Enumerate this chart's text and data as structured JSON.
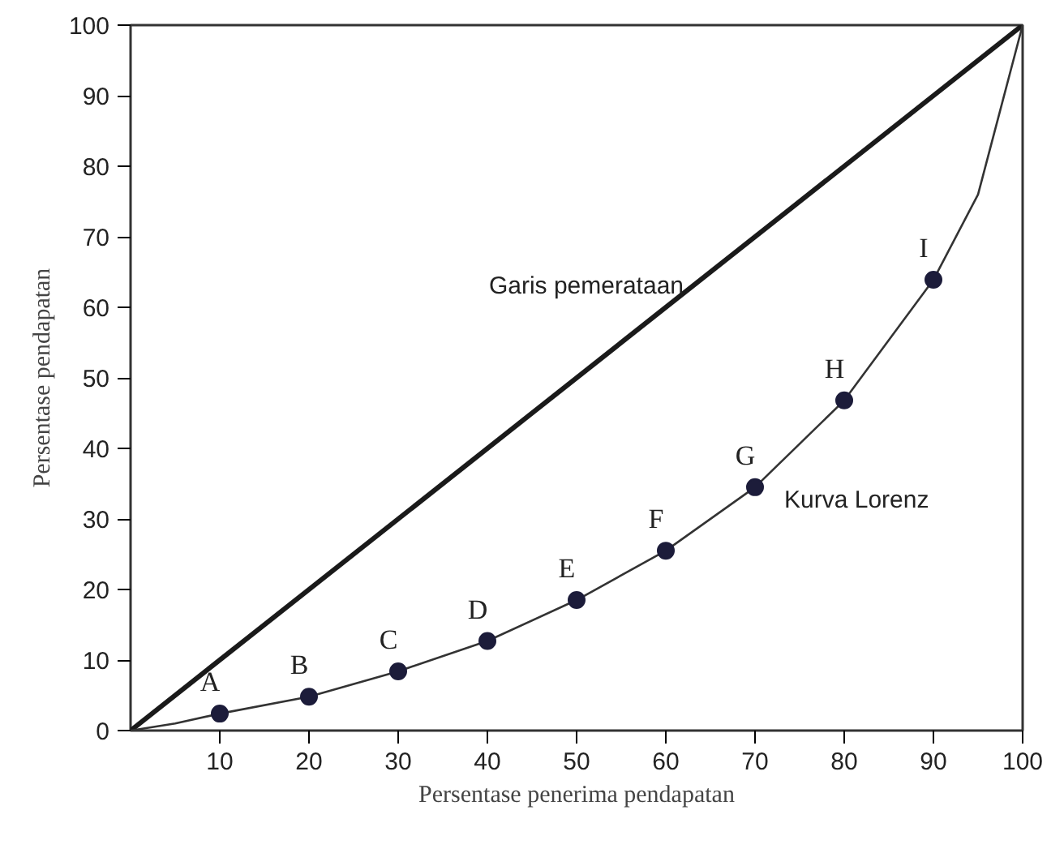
{
  "chart_data": {
    "type": "line",
    "xlabel": "Persentase penerima pendapatan",
    "ylabel": "Persentase pendapatan",
    "xlim": [
      0,
      100
    ],
    "ylim": [
      0,
      100
    ],
    "xticks": [
      10,
      20,
      30,
      40,
      50,
      60,
      70,
      80,
      90,
      100
    ],
    "yticks": [
      0,
      10,
      20,
      30,
      40,
      50,
      60,
      70,
      80,
      90,
      100
    ],
    "grid": false,
    "series": [
      {
        "name": "Garis pemerataan",
        "color": "#1a1a1a",
        "x": [
          0,
          100
        ],
        "values": [
          0,
          100
        ]
      },
      {
        "name": "Kurva Lorenz",
        "color": "#333333",
        "x": [
          0,
          5,
          10,
          20,
          30,
          40,
          50,
          60,
          70,
          80,
          90,
          95,
          100
        ],
        "values": [
          0,
          1,
          2.4,
          4.8,
          8.4,
          12.7,
          18.5,
          25.5,
          34.5,
          46.8,
          63.9,
          76,
          100
        ]
      },
      {
        "type": "scatter",
        "marker": "circle",
        "color": "#1c1c3a",
        "x": [
          10,
          20,
          30,
          40,
          50,
          60,
          70,
          80,
          90
        ],
        "values": [
          2.4,
          4.8,
          8.4,
          12.7,
          18.5,
          25.5,
          34.5,
          46.8,
          63.9
        ]
      }
    ],
    "annotations": [
      {
        "text": "A",
        "x": 10,
        "y": 2.4
      },
      {
        "text": "B",
        "x": 20,
        "y": 4.8
      },
      {
        "text": "C",
        "x": 30,
        "y": 8.4
      },
      {
        "text": "D",
        "x": 40,
        "y": 12.7
      },
      {
        "text": "E",
        "x": 50,
        "y": 18.5
      },
      {
        "text": "F",
        "x": 60,
        "y": 25.5
      },
      {
        "text": "G",
        "x": 70,
        "y": 34.5
      },
      {
        "text": "H",
        "x": 80,
        "y": 46.8
      },
      {
        "text": "I",
        "x": 90,
        "y": 63.9
      }
    ]
  }
}
